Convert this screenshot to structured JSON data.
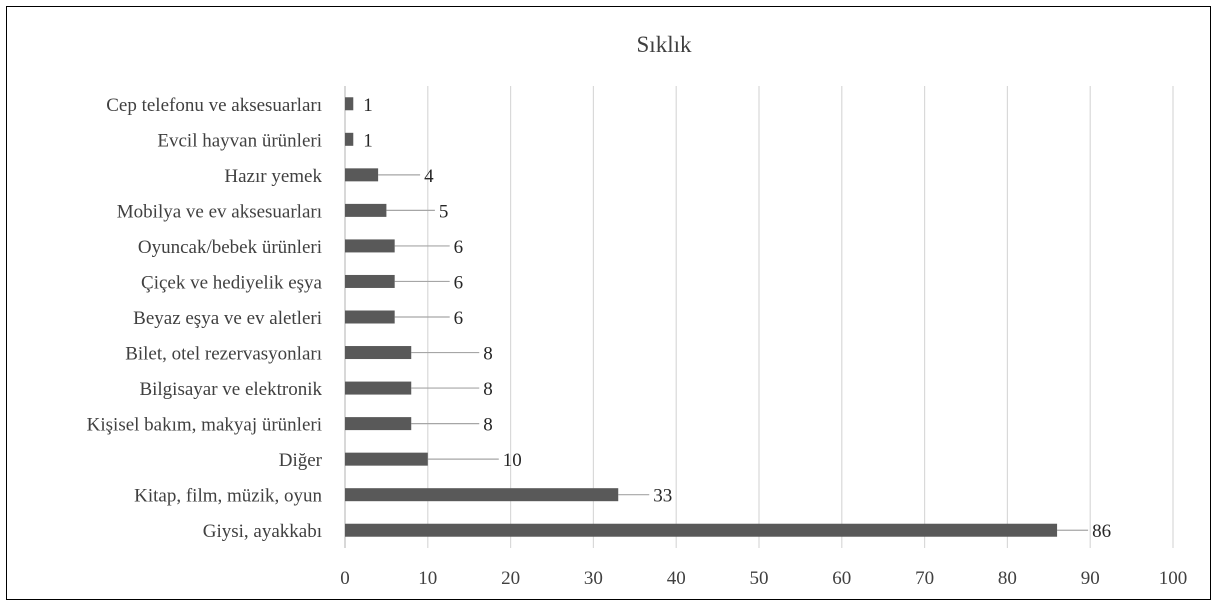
{
  "chart_data": {
    "type": "bar",
    "orientation": "horizontal",
    "title": "Sıklık",
    "xlabel": "",
    "ylabel": "",
    "xlim": [
      0,
      100
    ],
    "x_ticks": [
      0,
      10,
      20,
      30,
      40,
      50,
      60,
      70,
      80,
      90,
      100
    ],
    "grid": "vertical",
    "legend": "none",
    "categories": [
      "Cep telefonu ve aksesuarları",
      "Evcil hayvan ürünleri",
      "Hazır yemek",
      "Mobilya ve ev aksesuarları",
      "Oyuncak/bebek ürünleri",
      "Çiçek ve hediyelik eşya",
      "Beyaz eşya ve ev aletleri",
      "Bilet, otel rezervasyonları",
      "Bilgisayar ve elektronik",
      "Kişisel bakım, makyaj ürünleri",
      "Diğer",
      "Kitap, film, müzik, oyun",
      "Giysi, ayakkabı"
    ],
    "values": [
      1,
      1,
      4,
      5,
      6,
      6,
      6,
      8,
      8,
      8,
      10,
      33,
      86
    ],
    "colors": {
      "bar": "#595959",
      "grid": "#d9d9d9",
      "axis": "#bfbfbf",
      "leader": "#a6a6a6",
      "text": "#404040"
    }
  }
}
